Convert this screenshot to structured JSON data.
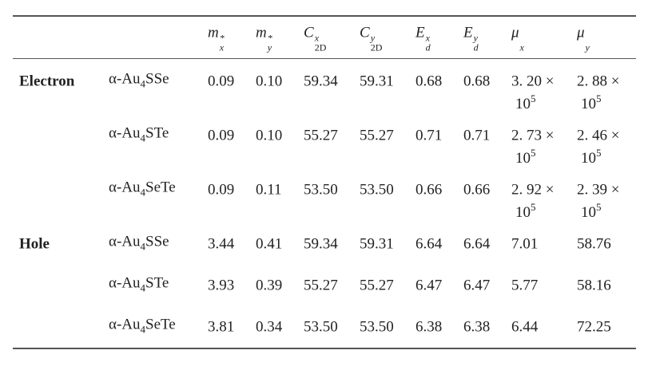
{
  "header": {
    "columns": [
      {
        "base": "m",
        "sub": "x",
        "sup": "*"
      },
      {
        "base": "m",
        "sub": "y",
        "sup": "*"
      },
      {
        "base": "C",
        "sub": "2D",
        "sup": "x"
      },
      {
        "base": "C",
        "sub": "2D",
        "sup": "y"
      },
      {
        "base": "E",
        "sub": "d",
        "sup": "x"
      },
      {
        "base": "E",
        "sub": "d",
        "sup": "y"
      },
      {
        "base": "μ",
        "sub": "x"
      },
      {
        "base": "μ",
        "sub": "y"
      }
    ]
  },
  "table": {
    "groups": [
      {
        "label": "Electron",
        "rows": [
          {
            "material": {
              "pre": "α-Au",
              "sub": "4",
              "post": "SSe"
            },
            "cells": [
              "0.09",
              "0.10",
              "59.34",
              "59.31",
              "0.68",
              "0.68",
              {
                "mantissa": "3. 20 ×",
                "base": "10",
                "exponent": "5"
              },
              {
                "mantissa": "2. 88 ×",
                "base": "10",
                "exponent": "5"
              }
            ]
          },
          {
            "material": {
              "pre": "α-Au",
              "sub": "4",
              "post": "STe"
            },
            "cells": [
              "0.09",
              "0.10",
              "55.27",
              "55.27",
              "0.71",
              "0.71",
              {
                "mantissa": "2. 73 ×",
                "base": "10",
                "exponent": "5"
              },
              {
                "mantissa": "2. 46 ×",
                "base": "10",
                "exponent": "5"
              }
            ]
          },
          {
            "material": {
              "pre": "α-Au",
              "sub": "4",
              "post": "SeTe"
            },
            "cells": [
              "0.09",
              "0.11",
              "53.50",
              "53.50",
              "0.66",
              "0.66",
              {
                "mantissa": "2. 92 ×",
                "base": "10",
                "exponent": "5"
              },
              {
                "mantissa": "2. 39 ×",
                "base": "10",
                "exponent": "5"
              }
            ]
          }
        ]
      },
      {
        "label": "Hole",
        "rows": [
          {
            "material": {
              "pre": "α-Au",
              "sub": "4",
              "post": "SSe"
            },
            "cells": [
              "3.44",
              "0.41",
              "59.34",
              "59.31",
              "6.64",
              "6.64",
              "7.01",
              "58.76"
            ]
          },
          {
            "material": {
              "pre": "α-Au",
              "sub": "4",
              "post": "STe"
            },
            "cells": [
              "3.93",
              "0.39",
              "55.27",
              "55.27",
              "6.47",
              "6.47",
              "5.77",
              "58.16"
            ]
          },
          {
            "material": {
              "pre": "α-Au",
              "sub": "4",
              "post": "SeTe"
            },
            "cells": [
              "3.81",
              "0.34",
              "53.50",
              "53.50",
              "6.38",
              "6.38",
              "6.44",
              "72.25"
            ]
          }
        ]
      }
    ]
  }
}
